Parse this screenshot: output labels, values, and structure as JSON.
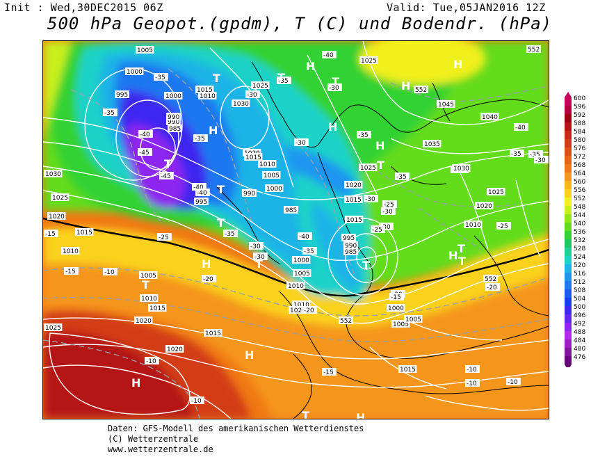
{
  "header": {
    "init": "Init : Wed,30DEC2015 06Z",
    "valid": "Valid: Tue,05JAN2016 12Z",
    "title": "500 hPa Geopot.(gpdm), T (C) und Bodendr. (hPa)"
  },
  "footer": {
    "line1": "Daten: GFS-Modell des amerikanischen Wetterdienstes",
    "line2": "(C) Wetterzentrale",
    "line3": "www.wetterzentrale.de"
  },
  "legend": {
    "levels": [
      {
        "v": "600",
        "c": "#c8005a"
      },
      {
        "v": "596",
        "c": "#b4003c"
      },
      {
        "v": "592",
        "c": "#a00014"
      },
      {
        "v": "588",
        "c": "#b41414"
      },
      {
        "v": "584",
        "c": "#c8281e"
      },
      {
        "v": "580",
        "c": "#d23c14"
      },
      {
        "v": "576",
        "c": "#dc5014"
      },
      {
        "v": "572",
        "c": "#e66414"
      },
      {
        "v": "568",
        "c": "#f07814"
      },
      {
        "v": "564",
        "c": "#f5961e"
      },
      {
        "v": "560",
        "c": "#fab41e"
      },
      {
        "v": "556",
        "c": "#fad21e"
      },
      {
        "v": "552",
        "c": "#f0f01e"
      },
      {
        "v": "548",
        "c": "#c8f01e"
      },
      {
        "v": "544",
        "c": "#96e61e"
      },
      {
        "v": "540",
        "c": "#64dc1e"
      },
      {
        "v": "536",
        "c": "#32d232"
      },
      {
        "v": "532",
        "c": "#1ec864"
      },
      {
        "v": "528",
        "c": "#1ed296"
      },
      {
        "v": "524",
        "c": "#1ed2c8"
      },
      {
        "v": "520",
        "c": "#1eb4e6"
      },
      {
        "v": "516",
        "c": "#1e96f0"
      },
      {
        "v": "512",
        "c": "#1e78f0"
      },
      {
        "v": "508",
        "c": "#1e5af0"
      },
      {
        "v": "504",
        "c": "#1e3cf0"
      },
      {
        "v": "500",
        "c": "#3c28f0"
      },
      {
        "v": "496",
        "c": "#6428f0"
      },
      {
        "v": "492",
        "c": "#8c28f0"
      },
      {
        "v": "488",
        "c": "#b428f0"
      },
      {
        "v": "484",
        "c": "#a01ec8"
      },
      {
        "v": "480",
        "c": "#8214a0"
      },
      {
        "v": "476",
        "c": "#640a78"
      }
    ]
  },
  "map": {
    "pressure_labels": [
      "1005",
      "1000",
      "995",
      "1000",
      "1010",
      "1015",
      "1025",
      "1030",
      "1025",
      "1040",
      "1045",
      "1035",
      "1030",
      "990",
      "985",
      "990",
      "1020",
      "1015",
      "1010",
      "1005",
      "1000",
      "1030",
      "1025",
      "1020",
      "1015",
      "1010",
      "995",
      "990",
      "985",
      "1005",
      "1010",
      "1020",
      "1015",
      "1010",
      "1005",
      "1000",
      "1025",
      "1020",
      "1015",
      "1010",
      "1005",
      "1020",
      "1015",
      "1015",
      "1020",
      "1025",
      "995",
      "990",
      "985",
      "1000",
      "1005",
      "1010",
      "1015",
      "1020",
      "1025",
      "1030"
    ],
    "temp_labels": [
      "-40",
      "-35",
      "-35",
      "-30",
      "-30",
      "-35",
      "-35",
      "-30",
      "-40",
      "-45",
      "-45",
      "-40",
      "-40",
      "-35",
      "-30",
      "-35",
      "-40",
      "-35",
      "-30",
      "-30",
      "-35",
      "-25",
      "-30",
      "-30",
      "-40",
      "-35",
      "-35",
      "-30",
      "-25",
      "-25",
      "-20",
      "-20",
      "-25",
      "-15",
      "-15",
      "-10",
      "-10",
      "-10",
      "-15",
      "-20",
      "-20",
      "-10",
      "-15",
      "-10",
      "-10"
    ],
    "height_labels": [
      "552",
      "552",
      "552",
      "552"
    ],
    "systems": [
      {
        "t": "H",
        "name": "high-marker"
      },
      {
        "t": "H",
        "name": "high-marker"
      },
      {
        "t": "H",
        "name": "high-marker"
      },
      {
        "t": "H",
        "name": "high-marker"
      },
      {
        "t": "H",
        "name": "high-marker"
      },
      {
        "t": "H",
        "name": "high-marker"
      },
      {
        "t": "H",
        "name": "high-marker"
      },
      {
        "t": "H",
        "name": "high-marker"
      },
      {
        "t": "H",
        "name": "high-marker"
      },
      {
        "t": "H",
        "name": "high-marker"
      },
      {
        "t": "H",
        "name": "high-marker"
      },
      {
        "t": "T",
        "name": "low-marker"
      },
      {
        "t": "T",
        "name": "low-marker"
      },
      {
        "t": "T",
        "name": "low-marker"
      },
      {
        "t": "T",
        "name": "low-marker"
      },
      {
        "t": "T",
        "name": "low-marker"
      },
      {
        "t": "T",
        "name": "low-marker"
      },
      {
        "t": "T",
        "name": "low-marker"
      },
      {
        "t": "T",
        "name": "low-marker"
      },
      {
        "t": "T",
        "name": "low-marker"
      },
      {
        "t": "T",
        "name": "low-marker"
      },
      {
        "t": "T",
        "name": "low-marker"
      },
      {
        "t": "T",
        "name": "low-marker"
      },
      {
        "t": "T",
        "name": "low-marker"
      }
    ]
  }
}
